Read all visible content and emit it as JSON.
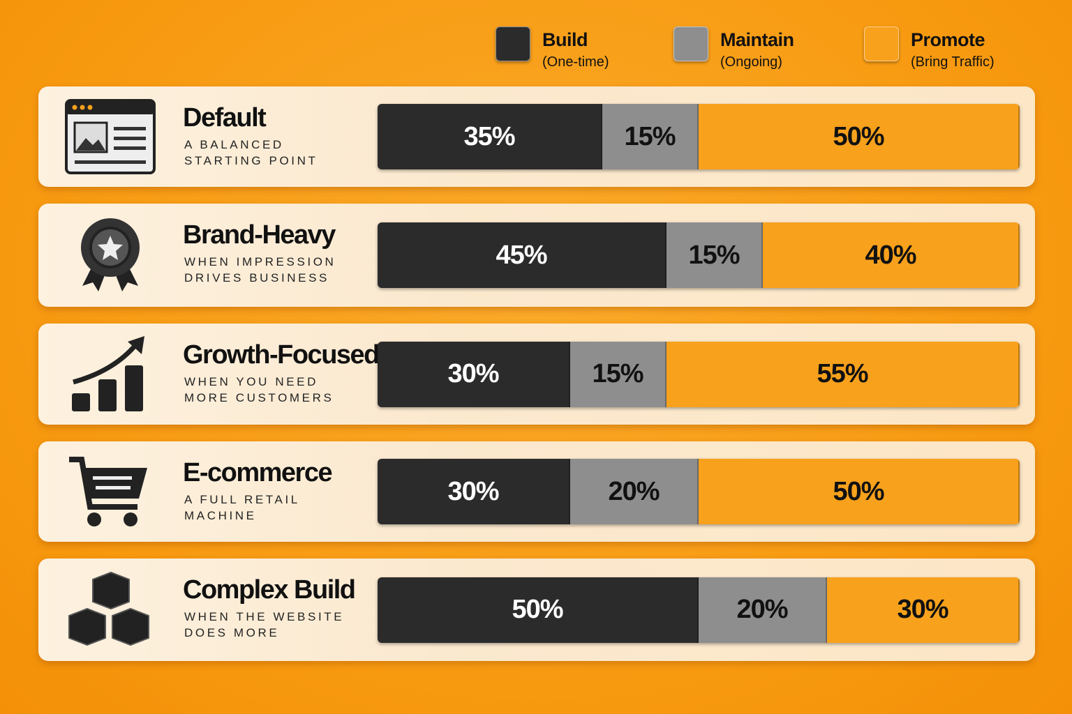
{
  "chart_data": {
    "type": "bar",
    "orientation": "horizontal",
    "stacked": true,
    "categories": [
      "Default",
      "Brand-Heavy",
      "Growth-Focused",
      "E-commerce",
      "Complex Build"
    ],
    "category_descriptions": [
      "A BALANCED STARTING POINT",
      "WHEN IMPRESSION DRIVES BUSINESS",
      "WHEN YOU NEED MORE CUSTOMERS",
      "A FULL RETAIL MACHINE",
      "WHEN THE WEBSITE DOES MORE"
    ],
    "series": [
      {
        "name": "Build",
        "description": "(One-time)",
        "color": "#2b2b2b",
        "label_color": "#ffffff",
        "values": [
          35,
          45,
          30,
          30,
          50
        ],
        "value_labels": [
          "35%",
          "45%",
          "30%",
          "30%",
          "50%"
        ]
      },
      {
        "name": "Maintain",
        "description": "(Ongoing)",
        "color": "#8e8e8e",
        "label_color": "#111111",
        "values": [
          15,
          15,
          15,
          20,
          20
        ],
        "value_labels": [
          "15%",
          "15%",
          "15%",
          "20%",
          "20%"
        ]
      },
      {
        "name": "Promote",
        "description": "(Bring Traffic)",
        "color": "#f8a11c",
        "label_color": "#111111",
        "values": [
          50,
          40,
          55,
          50,
          30
        ],
        "value_labels": [
          "50%",
          "40%",
          "55%",
          "50%",
          "30%"
        ]
      }
    ],
    "legend": "top-right"
  }
}
